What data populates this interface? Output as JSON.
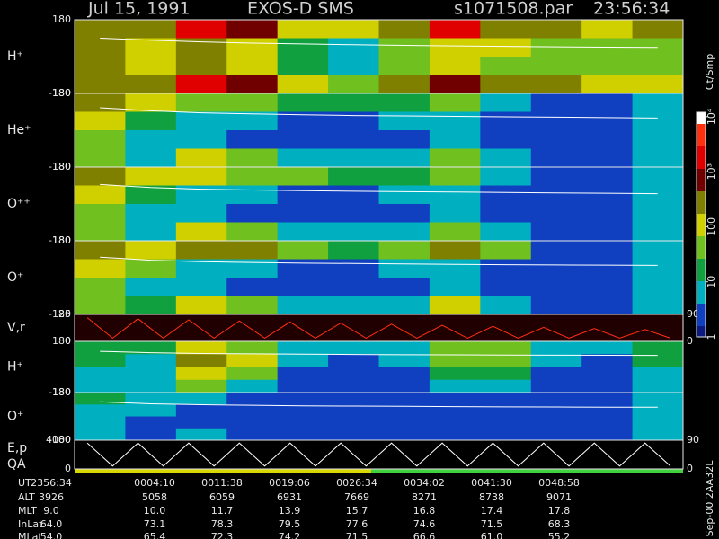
{
  "header": {
    "date": "Jul 15, 1991",
    "instrument": "EXOS-D SMS",
    "file": "s1071508.par",
    "time": "23:56:34"
  },
  "chart_data": [
    {
      "type": "heatmap",
      "ylabel": "H⁺",
      "ylim": [
        -180,
        180
      ],
      "yticks": [
        -180,
        180
      ],
      "values": [
        [
          300,
          200,
          2000,
          800,
          100,
          80,
          300,
          2500,
          200,
          300,
          150,
          200
        ],
        [
          400,
          150,
          300,
          150,
          20,
          5,
          60,
          100,
          80,
          60,
          40,
          50
        ],
        [
          400,
          150,
          200,
          100,
          20,
          5,
          50,
          80,
          60,
          40,
          30,
          40
        ],
        [
          300,
          200,
          2000,
          600,
          100,
          50,
          200,
          500,
          300,
          200,
          100,
          150
        ]
      ],
      "trace": [
        90,
        80,
        72,
        66,
        62,
        58,
        55,
        52,
        50,
        48,
        46,
        45
      ]
    },
    {
      "type": "heatmap",
      "ylabel": "He⁺",
      "ylim": [
        -180,
        180
      ],
      "yticks": [
        -180,
        180
      ],
      "values": [
        [
          300,
          100,
          60,
          30,
          20,
          15,
          20,
          40,
          5,
          2,
          2,
          10
        ],
        [
          100,
          20,
          10,
          5,
          3,
          3,
          5,
          10,
          2,
          2,
          2,
          5
        ],
        [
          50,
          10,
          5,
          2,
          2,
          2,
          2,
          5,
          2,
          2,
          2,
          5
        ],
        [
          30,
          10,
          80,
          30,
          10,
          5,
          5,
          60,
          5,
          2,
          2,
          10
        ]
      ],
      "trace": [
        110,
        95,
        85,
        80,
        76,
        72,
        70,
        68,
        66,
        64,
        62,
        60
      ]
    },
    {
      "type": "heatmap",
      "ylabel": "O⁺⁺",
      "ylim": [
        -180,
        180
      ],
      "yticks": [
        -180,
        180
      ],
      "values": [
        [
          300,
          120,
          80,
          40,
          30,
          20,
          25,
          50,
          5,
          2,
          2,
          10
        ],
        [
          100,
          20,
          10,
          5,
          3,
          3,
          5,
          10,
          2,
          2,
          2,
          5
        ],
        [
          40,
          10,
          5,
          2,
          2,
          2,
          2,
          5,
          2,
          2,
          2,
          5
        ],
        [
          30,
          10,
          90,
          40,
          10,
          5,
          5,
          50,
          5,
          2,
          2,
          10
        ]
      ],
      "trace": [
        95,
        80,
        72,
        68,
        65,
        62,
        60,
        58,
        56,
        54,
        52,
        50
      ]
    },
    {
      "type": "heatmap",
      "ylabel": "O⁺",
      "ylim": [
        -180,
        180
      ],
      "yticks": [
        -180,
        180
      ],
      "values": [
        [
          400,
          150,
          300,
          200,
          30,
          20,
          30,
          300,
          30,
          2,
          2,
          10
        ],
        [
          150,
          30,
          10,
          5,
          3,
          3,
          5,
          10,
          3,
          2,
          2,
          5
        ],
        [
          50,
          10,
          5,
          2,
          2,
          2,
          2,
          5,
          2,
          2,
          2,
          5
        ],
        [
          40,
          15,
          100,
          40,
          10,
          5,
          5,
          100,
          5,
          2,
          2,
          10
        ]
      ],
      "trace": [
        100,
        85,
        78,
        74,
        71,
        69,
        67,
        65,
        63,
        62,
        61,
        60
      ]
    },
    {
      "type": "line",
      "ylabel": "V,r",
      "ylim": [
        0,
        25
      ],
      "yticks": [
        0,
        25
      ],
      "y2lim": [
        0,
        90
      ],
      "y2ticks": [
        0,
        90
      ],
      "color": "#ff3010",
      "values": [
        22,
        3,
        21,
        3,
        20,
        3,
        19,
        3,
        18,
        3,
        17,
        3,
        16,
        3,
        15,
        3,
        14,
        3,
        13,
        3,
        12,
        3,
        11,
        3
      ]
    },
    {
      "type": "heatmap",
      "ylabel": "H⁺",
      "ylim": [
        -180,
        180
      ],
      "yticks": [
        -180,
        180
      ],
      "values": [
        [
          20,
          20,
          100,
          30,
          10,
          5,
          10,
          50,
          40,
          10,
          5,
          20
        ],
        [
          15,
          10,
          300,
          100,
          5,
          3,
          5,
          40,
          40,
          5,
          3,
          20
        ],
        [
          10,
          5,
          100,
          30,
          3,
          2,
          3,
          20,
          20,
          3,
          2,
          10
        ],
        [
          5,
          5,
          30,
          10,
          2,
          2,
          2,
          10,
          10,
          2,
          2,
          10
        ]
      ],
      "trace": [
        110,
        100,
        95,
        92,
        90,
        88,
        86,
        85,
        84,
        83,
        82,
        81
      ]
    },
    {
      "type": "heatmap",
      "ylabel": "O⁺",
      "ylim": [
        -180,
        180
      ],
      "yticks": [
        -180,
        180
      ],
      "values": [
        [
          20,
          5,
          5,
          3,
          2,
          2,
          2,
          2,
          2,
          2,
          2,
          10
        ],
        [
          10,
          5,
          3,
          2,
          2,
          2,
          2,
          2,
          2,
          2,
          2,
          10
        ],
        [
          5,
          3,
          2,
          2,
          2,
          2,
          2,
          2,
          2,
          2,
          2,
          10
        ],
        [
          5,
          3,
          5,
          2,
          2,
          2,
          2,
          2,
          2,
          2,
          2,
          10
        ]
      ],
      "trace": [
        110,
        95,
        88,
        84,
        80,
        78,
        76,
        74,
        72,
        71,
        70,
        70
      ]
    },
    {
      "type": "line",
      "ylabel": "E,p",
      "ylabel2": "QA",
      "ylim": [
        0,
        4000
      ],
      "yticks": [
        0,
        4000
      ],
      "y2lim": [
        0,
        90
      ],
      "y2ticks": [
        0,
        90
      ],
      "color": "#ffffff",
      "values": [
        3600,
        400,
        3600,
        400,
        3600,
        400,
        3600,
        400,
        3600,
        400,
        3600,
        400,
        3600,
        400,
        3600,
        400,
        3600,
        400,
        3600,
        400,
        3600,
        400,
        3600,
        400
      ]
    }
  ],
  "colorbar": {
    "label": "Ct/Smp",
    "clim": [
      1,
      12000
    ],
    "log": true,
    "ticks": [
      1,
      10,
      100,
      {
        "value": 1000,
        "label": "10³"
      },
      {
        "value": 10000,
        "label": "10⁴"
      }
    ],
    "colors": [
      "#0a1a80",
      "#1040c0",
      "#00b0c0",
      "#10a040",
      "#70c020",
      "#d0d000",
      "#808000",
      "#700000",
      "#e00000",
      "#ff3010",
      "#ffffff"
    ]
  },
  "footer": {
    "rows": [
      {
        "name": "UT",
        "values": [
          "2356:34",
          "0004:10",
          "0011:38",
          "0019:06",
          "0026:34",
          "0034:02",
          "0041:30",
          "0048:58"
        ]
      },
      {
        "name": "ALT",
        "values": [
          "3926",
          "5058",
          "6059",
          "6931",
          "7669",
          "8271",
          "8738",
          "9071"
        ]
      },
      {
        "name": "MLT",
        "values": [
          "9.0",
          "10.0",
          "11.7",
          "13.9",
          "15.7",
          "16.8",
          "17.4",
          "17.8"
        ]
      },
      {
        "name": "InLat",
        "values": [
          "64.0",
          "73.1",
          "78.3",
          "79.5",
          "77.6",
          "74.6",
          "71.5",
          "68.3"
        ]
      },
      {
        "name": "MLat",
        "values": [
          "54.0",
          "65.4",
          "72.3",
          "74.2",
          "71.5",
          "66.6",
          "61.0",
          "55.2"
        ]
      }
    ]
  },
  "stamp": "Sep-00 2AA32L"
}
